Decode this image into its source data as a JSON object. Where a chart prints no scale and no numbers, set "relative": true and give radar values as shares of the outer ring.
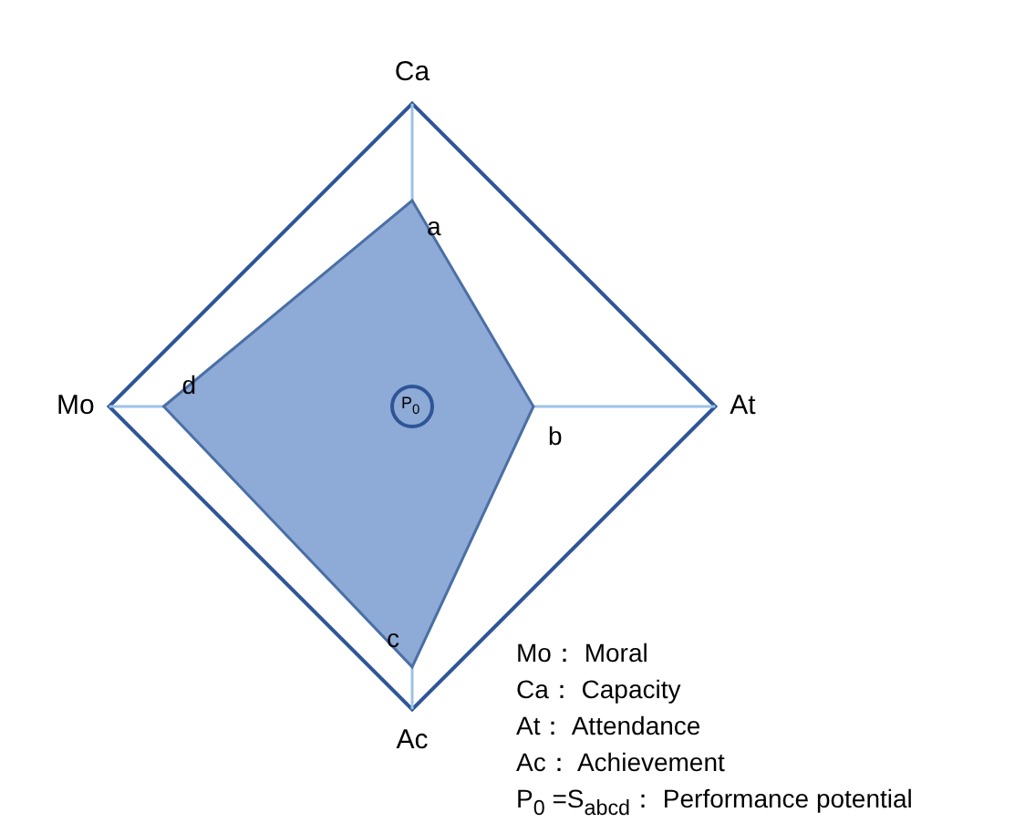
{
  "chart_data": {
    "type": "radar",
    "relative": true,
    "categories": [
      "Ca",
      "At",
      "Ac",
      "Mo"
    ],
    "series": [
      {
        "color": "#8eaad6",
        "values": [
          0.68,
          0.4,
          0.86,
          0.82
        ]
      }
    ],
    "annotations": [
      "a",
      "b",
      "c",
      "d",
      "P$_{0}$",
      "Mo： Moral",
      "Ca： Capacity",
      "At： Attendance",
      "Ac： Achievement",
      "P$_{0}$ =S$_{abcd}$： Performance potential"
    ]
  }
}
